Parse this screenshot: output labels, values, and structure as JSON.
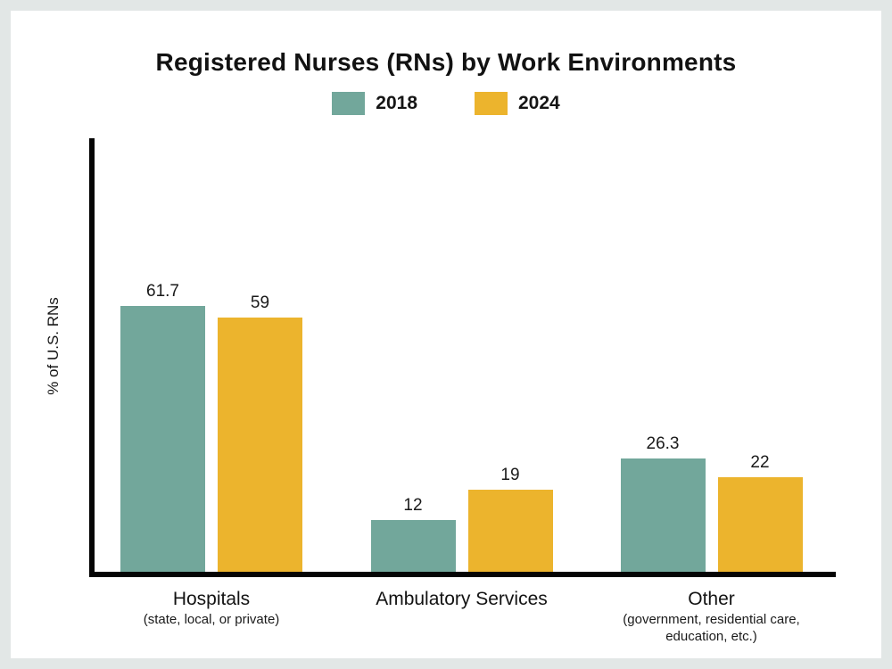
{
  "page": {
    "background_color": "#e2e7e6",
    "card_color": "#ffffff",
    "axis_color": "#050505"
  },
  "chart_data": {
    "type": "bar",
    "title": "Registered Nurses (RNs) by Work Environments",
    "ylabel": "% of U.S. RNs",
    "xlabel": "",
    "ylim": [
      0,
      100
    ],
    "grid": false,
    "legend_position": "top",
    "categories": [
      {
        "label": "Hospitals",
        "sublabel": "(state, local, or private)"
      },
      {
        "label": "Ambulatory Services",
        "sublabel": ""
      },
      {
        "label": "Other",
        "sublabel": "(government, residential care, education, etc.)"
      }
    ],
    "series": [
      {
        "name": "2018",
        "color": "#72a79b",
        "values": [
          61.7,
          12,
          26.3
        ]
      },
      {
        "name": "2024",
        "color": "#ecb42d",
        "values": [
          59,
          19,
          22
        ]
      }
    ]
  }
}
